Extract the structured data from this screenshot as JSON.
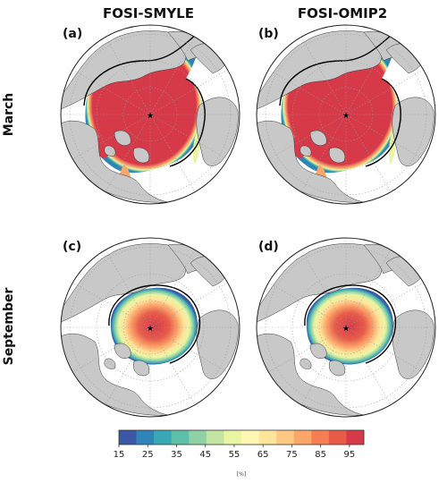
{
  "columns": [
    "FOSI-SMYLE",
    "FOSI-OMIP2"
  ],
  "rows": [
    "March",
    "September"
  ],
  "panels": [
    {
      "label": "(a)",
      "column": "FOSI-SMYLE",
      "month": "March"
    },
    {
      "label": "(b)",
      "column": "FOSI-OMIP2",
      "month": "March"
    },
    {
      "label": "(c)",
      "column": "FOSI-SMYLE",
      "month": "September"
    },
    {
      "label": "(d)",
      "column": "FOSI-OMIP2",
      "month": "September"
    }
  ],
  "colorbar": {
    "ticks": [
      "15",
      "25",
      "35",
      "45",
      "55",
      "65",
      "75",
      "85",
      "95"
    ],
    "unit": "[%]",
    "min": 15,
    "max": 100,
    "colors": [
      "#3b57a6",
      "#2f84b8",
      "#38a8b6",
      "#5dbfa6",
      "#8fd1a4",
      "#c2e4a0",
      "#e9f5a3",
      "#fdf7b2",
      "#fee59b",
      "#fdc982",
      "#fca66a",
      "#f57f52",
      "#e85b49",
      "#d63a49"
    ]
  },
  "colors": {
    "ocean": "#ffffff",
    "land": "#c8c8c8",
    "ice_high": "#d63a49",
    "ice_edge": "#000000"
  },
  "markers": {
    "pole_marker": "★"
  }
}
